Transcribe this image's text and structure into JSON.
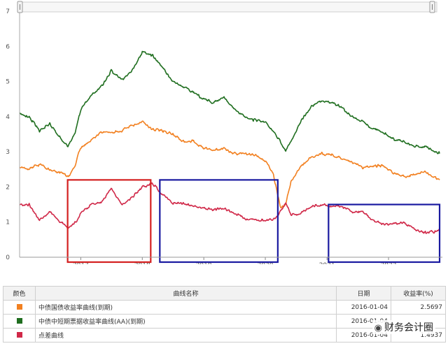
{
  "chart_data": {
    "type": "line",
    "x_range": [
      "2016-01-04",
      "2022-10-31"
    ],
    "ylim": [
      0,
      7
    ],
    "y_ticks": [
      0,
      1,
      2,
      3,
      4,
      5,
      6,
      7
    ],
    "x_tick_labels": [
      "2017",
      "2018",
      "2019",
      "2020",
      "2021",
      "2022"
    ],
    "grid": false,
    "series": [
      {
        "name": "中债国债收益率曲线(到期)",
        "color": "#f28020",
        "points": [
          [
            "2016-01-04",
            2.57
          ],
          [
            "2016-03-01",
            2.5
          ],
          [
            "2016-05-01",
            2.65
          ],
          [
            "2016-07-01",
            2.5
          ],
          [
            "2016-09-01",
            2.4
          ],
          [
            "2016-10-20",
            2.3
          ],
          [
            "2016-12-01",
            2.6
          ],
          [
            "2016-12-20",
            3.0
          ],
          [
            "2017-01-15",
            3.15
          ],
          [
            "2017-03-01",
            3.3
          ],
          [
            "2017-05-01",
            3.55
          ],
          [
            "2017-07-01",
            3.55
          ],
          [
            "2017-09-01",
            3.6
          ],
          [
            "2017-11-01",
            3.75
          ],
          [
            "2018-01-01",
            3.85
          ],
          [
            "2018-03-01",
            3.65
          ],
          [
            "2018-05-01",
            3.6
          ],
          [
            "2018-07-01",
            3.5
          ],
          [
            "2018-09-01",
            3.3
          ],
          [
            "2018-11-01",
            3.3
          ],
          [
            "2019-01-01",
            3.1
          ],
          [
            "2019-03-01",
            3.05
          ],
          [
            "2019-05-01",
            3.1
          ],
          [
            "2019-07-01",
            2.95
          ],
          [
            "2019-09-01",
            2.95
          ],
          [
            "2019-11-01",
            2.9
          ],
          [
            "2020-01-01",
            2.75
          ],
          [
            "2020-02-15",
            2.4
          ],
          [
            "2020-04-01",
            1.4
          ],
          [
            "2020-05-01",
            1.5
          ],
          [
            "2020-06-01",
            2.15
          ],
          [
            "2020-08-01",
            2.6
          ],
          [
            "2020-10-01",
            2.85
          ],
          [
            "2020-12-01",
            2.95
          ],
          [
            "2021-02-01",
            2.9
          ],
          [
            "2021-04-01",
            2.8
          ],
          [
            "2021-06-01",
            2.7
          ],
          [
            "2021-08-01",
            2.55
          ],
          [
            "2021-10-01",
            2.6
          ],
          [
            "2021-12-01",
            2.6
          ],
          [
            "2022-02-01",
            2.4
          ],
          [
            "2022-04-01",
            2.3
          ],
          [
            "2022-06-01",
            2.35
          ],
          [
            "2022-08-01",
            2.45
          ],
          [
            "2022-10-31",
            2.2
          ]
        ]
      },
      {
        "name": "中债中短期票据收益率曲线(AA)(到期)",
        "color": "#1f6e1f",
        "points": [
          [
            "2016-01-04",
            4.07
          ],
          [
            "2016-03-01",
            4.0
          ],
          [
            "2016-05-01",
            3.6
          ],
          [
            "2016-07-01",
            3.8
          ],
          [
            "2016-09-01",
            3.4
          ],
          [
            "2016-10-20",
            3.15
          ],
          [
            "2016-12-01",
            3.6
          ],
          [
            "2017-01-01",
            4.2
          ],
          [
            "2017-03-01",
            4.6
          ],
          [
            "2017-05-01",
            4.85
          ],
          [
            "2017-07-01",
            5.3
          ],
          [
            "2017-09-01",
            5.05
          ],
          [
            "2017-11-01",
            5.3
          ],
          [
            "2018-01-01",
            5.85
          ],
          [
            "2018-03-01",
            5.75
          ],
          [
            "2018-05-01",
            5.4
          ],
          [
            "2018-07-01",
            5.0
          ],
          [
            "2018-09-01",
            4.85
          ],
          [
            "2018-11-01",
            4.7
          ],
          [
            "2019-01-01",
            4.5
          ],
          [
            "2019-03-01",
            4.4
          ],
          [
            "2019-05-01",
            4.55
          ],
          [
            "2019-07-01",
            4.2
          ],
          [
            "2019-09-01",
            4.0
          ],
          [
            "2019-11-01",
            3.9
          ],
          [
            "2020-01-01",
            3.85
          ],
          [
            "2020-03-01",
            3.5
          ],
          [
            "2020-05-01",
            3.05
          ],
          [
            "2020-06-01",
            3.3
          ],
          [
            "2020-08-01",
            3.9
          ],
          [
            "2020-10-01",
            4.3
          ],
          [
            "2020-12-01",
            4.45
          ],
          [
            "2021-02-01",
            4.4
          ],
          [
            "2021-04-01",
            4.25
          ],
          [
            "2021-06-01",
            4.0
          ],
          [
            "2021-08-01",
            3.85
          ],
          [
            "2021-10-01",
            3.65
          ],
          [
            "2021-12-01",
            3.55
          ],
          [
            "2022-02-01",
            3.35
          ],
          [
            "2022-04-01",
            3.3
          ],
          [
            "2022-06-01",
            3.15
          ],
          [
            "2022-08-01",
            3.15
          ],
          [
            "2022-10-31",
            2.95
          ]
        ]
      },
      {
        "name": "点差曲线",
        "color": "#d02848",
        "points": [
          [
            "2016-01-04",
            1.49
          ],
          [
            "2016-03-01",
            1.5
          ],
          [
            "2016-05-01",
            1.05
          ],
          [
            "2016-07-01",
            1.3
          ],
          [
            "2016-09-01",
            1.0
          ],
          [
            "2016-10-20",
            0.85
          ],
          [
            "2016-12-01",
            1.0
          ],
          [
            "2017-01-01",
            1.25
          ],
          [
            "2017-03-01",
            1.5
          ],
          [
            "2017-05-01",
            1.55
          ],
          [
            "2017-07-01",
            1.95
          ],
          [
            "2017-09-01",
            1.5
          ],
          [
            "2017-11-01",
            1.7
          ],
          [
            "2018-01-01",
            2.0
          ],
          [
            "2018-03-01",
            2.1
          ],
          [
            "2018-05-01",
            1.8
          ],
          [
            "2018-07-01",
            1.55
          ],
          [
            "2018-09-01",
            1.55
          ],
          [
            "2018-11-01",
            1.45
          ],
          [
            "2019-01-01",
            1.4
          ],
          [
            "2019-03-01",
            1.35
          ],
          [
            "2019-05-01",
            1.4
          ],
          [
            "2019-07-01",
            1.25
          ],
          [
            "2019-09-01",
            1.1
          ],
          [
            "2019-11-01",
            1.05
          ],
          [
            "2020-01-01",
            1.05
          ],
          [
            "2020-03-01",
            1.1
          ],
          [
            "2020-05-01",
            1.55
          ],
          [
            "2020-06-01",
            1.2
          ],
          [
            "2020-08-01",
            1.25
          ],
          [
            "2020-10-01",
            1.45
          ],
          [
            "2020-12-01",
            1.5
          ],
          [
            "2021-02-01",
            1.45
          ],
          [
            "2021-04-01",
            1.45
          ],
          [
            "2021-06-01",
            1.3
          ],
          [
            "2021-08-01",
            1.3
          ],
          [
            "2021-10-01",
            1.05
          ],
          [
            "2021-12-01",
            0.95
          ],
          [
            "2022-02-01",
            0.95
          ],
          [
            "2022-04-01",
            1.0
          ],
          [
            "2022-06-01",
            0.8
          ],
          [
            "2022-08-01",
            0.7
          ],
          [
            "2022-10-31",
            0.75
          ]
        ]
      }
    ],
    "annotations": [
      {
        "shape": "rectangle",
        "color": "#d42020",
        "x": [
          "2016-10-15",
          "2018-02-20"
        ],
        "y": [
          0,
          2.2
        ]
      },
      {
        "shape": "rectangle",
        "color": "#1a1aa0",
        "x": [
          "2018-04-15",
          "2020-03-15"
        ],
        "y": [
          0,
          2.2
        ]
      },
      {
        "shape": "rectangle",
        "color": "#1a1aa0",
        "x": [
          "2021-01-10",
          "2022-10-31"
        ],
        "y": [
          0,
          1.5
        ]
      }
    ]
  },
  "table": {
    "headers": {
      "color": "颜色",
      "name": "曲线名称",
      "date": "日期",
      "rate": "收益率(%)"
    },
    "rows": [
      {
        "name": "中债国债收益率曲线(到期)",
        "date": "2016-01-04",
        "rate": "2.5697",
        "color": "#f28020"
      },
      {
        "name": "中债中短期票据收益率曲线(AA)(到期)",
        "date": "2016-01-04",
        "rate": "",
        "color": "#1f6e1f"
      },
      {
        "name": "点差曲线",
        "date": "2016-01-04",
        "rate": "1.4937",
        "color": "#d02848"
      }
    ]
  },
  "watermark": {
    "text": "财务会计圈",
    "icon": "wechat-icon"
  }
}
